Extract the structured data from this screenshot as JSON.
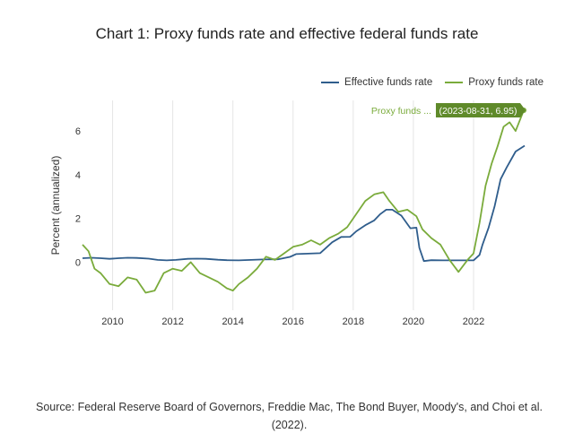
{
  "chart_data": {
    "type": "line",
    "title": "Chart 1: Proxy funds rate and effective federal funds rate",
    "xlabel": "",
    "ylabel": "Percent (annualized)",
    "xlim": [
      2009.0,
      2023.7
    ],
    "ylim": [
      -2.2,
      7.4
    ],
    "x_ticks": [
      2010,
      2012,
      2014,
      2016,
      2018,
      2020,
      2022
    ],
    "y_ticks": [
      0,
      2,
      4,
      6
    ],
    "grid": "vertical",
    "legend_position": "top-right",
    "series": [
      {
        "name": "Effective funds rate",
        "color": "#2f5d8c",
        "x": [
          2009.0,
          2009.3,
          2009.6,
          2009.9,
          2010.2,
          2010.5,
          2010.8,
          2011.2,
          2011.5,
          2011.8,
          2012.1,
          2012.5,
          2012.8,
          2013.1,
          2013.5,
          2013.8,
          2014.2,
          2014.6,
          2015.0,
          2015.5,
          2015.9,
          2016.1,
          2016.5,
          2016.9,
          2017.1,
          2017.3,
          2017.6,
          2017.9,
          2018.1,
          2018.4,
          2018.7,
          2018.9,
          2019.1,
          2019.3,
          2019.6,
          2019.9,
          2020.1,
          2020.2,
          2020.35,
          2020.6,
          2021.0,
          2021.4,
          2021.8,
          2022.0,
          2022.2,
          2022.3,
          2022.5,
          2022.7,
          2022.9,
          2023.1,
          2023.4,
          2023.7
        ],
        "values": [
          0.18,
          0.2,
          0.18,
          0.15,
          0.18,
          0.2,
          0.19,
          0.16,
          0.1,
          0.08,
          0.1,
          0.15,
          0.16,
          0.15,
          0.11,
          0.09,
          0.08,
          0.1,
          0.12,
          0.13,
          0.24,
          0.37,
          0.39,
          0.41,
          0.66,
          0.91,
          1.15,
          1.16,
          1.41,
          1.69,
          1.91,
          2.2,
          2.4,
          2.4,
          2.13,
          1.55,
          1.58,
          0.65,
          0.05,
          0.09,
          0.08,
          0.08,
          0.08,
          0.08,
          0.33,
          0.8,
          1.58,
          2.56,
          3.8,
          4.33,
          5.06,
          5.33
        ]
      },
      {
        "name": "Proxy funds rate",
        "color": "#7aab3b",
        "x": [
          2009.0,
          2009.2,
          2009.4,
          2009.6,
          2009.9,
          2010.2,
          2010.5,
          2010.8,
          2011.1,
          2011.4,
          2011.7,
          2012.0,
          2012.3,
          2012.6,
          2012.9,
          2013.2,
          2013.5,
          2013.8,
          2014.0,
          2014.2,
          2014.5,
          2014.8,
          2015.1,
          2015.4,
          2015.7,
          2016.0,
          2016.3,
          2016.6,
          2016.9,
          2017.2,
          2017.5,
          2017.8,
          2018.1,
          2018.4,
          2018.7,
          2019.0,
          2019.2,
          2019.5,
          2019.8,
          2020.1,
          2020.3,
          2020.6,
          2020.9,
          2021.2,
          2021.5,
          2021.8,
          2022.0,
          2022.2,
          2022.4,
          2022.6,
          2022.8,
          2023.0,
          2023.2,
          2023.4,
          2023.67
        ],
        "values": [
          0.8,
          0.5,
          -0.3,
          -0.5,
          -1.0,
          -1.1,
          -0.7,
          -0.8,
          -1.4,
          -1.3,
          -0.5,
          -0.3,
          -0.4,
          0.0,
          -0.5,
          -0.7,
          -0.9,
          -1.2,
          -1.3,
          -1.0,
          -0.7,
          -0.3,
          0.25,
          0.1,
          0.4,
          0.7,
          0.8,
          1.0,
          0.8,
          1.1,
          1.3,
          1.6,
          2.2,
          2.8,
          3.1,
          3.2,
          2.8,
          2.3,
          2.4,
          2.1,
          1.5,
          1.1,
          0.8,
          0.1,
          -0.45,
          0.1,
          0.4,
          1.8,
          3.5,
          4.5,
          5.3,
          6.2,
          6.4,
          6.0,
          6.95
        ]
      }
    ],
    "tooltip": {
      "series_label": "Proxy funds ...",
      "text": "(2023-08-31, 6.95)"
    }
  },
  "source_note": "Source: Federal Reserve Board of Governors, Freddie Mac, The Bond Buyer, Moody's, and Choi et al. (2022)."
}
